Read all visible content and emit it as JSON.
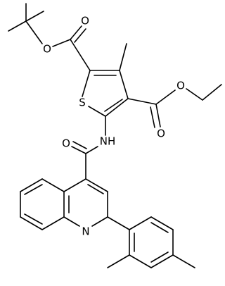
{
  "atom_labels": [
    "O",
    "O",
    "S",
    "O",
    "O",
    "NH",
    "O",
    "N"
  ]
}
